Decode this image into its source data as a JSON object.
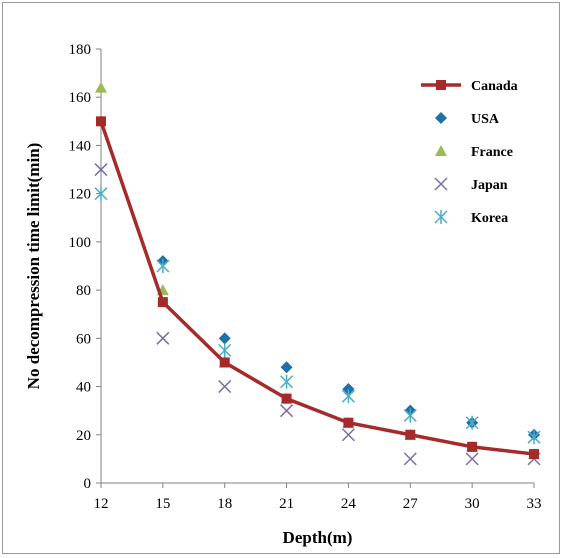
{
  "chart_data": {
    "type": "line",
    "title": "",
    "xlabel": "Depth(m)",
    "ylabel": "No decompression time limit(min)",
    "x": [
      12,
      15,
      18,
      21,
      24,
      27,
      30,
      33
    ],
    "xlim": [
      12,
      33
    ],
    "ylim": [
      0,
      180
    ],
    "yticks": [
      0,
      20,
      40,
      60,
      80,
      100,
      120,
      140,
      160,
      180
    ],
    "grid": false,
    "legend_position": "top-right",
    "series": [
      {
        "name": "Canada",
        "style": "line-square",
        "color": "#a52a2a",
        "values": [
          150,
          75,
          50,
          35,
          25,
          20,
          15,
          12
        ]
      },
      {
        "name": "USA",
        "style": "diamond",
        "color": "#1f6fa8",
        "values": [
          null,
          92,
          60,
          48,
          39,
          30,
          25,
          20
        ]
      },
      {
        "name": "France",
        "style": "triangle",
        "color": "#9bbb59",
        "values": [
          164,
          80,
          50,
          35,
          25,
          20,
          15,
          12
        ]
      },
      {
        "name": "Japan",
        "style": "x",
        "color": "#7b6ea8",
        "values": [
          130,
          60,
          40,
          30,
          20,
          10,
          10,
          10
        ]
      },
      {
        "name": "Korea",
        "style": "asterisk",
        "color": "#4bacc6",
        "values": [
          120,
          90,
          55,
          42,
          36,
          28,
          25,
          19
        ]
      }
    ]
  }
}
